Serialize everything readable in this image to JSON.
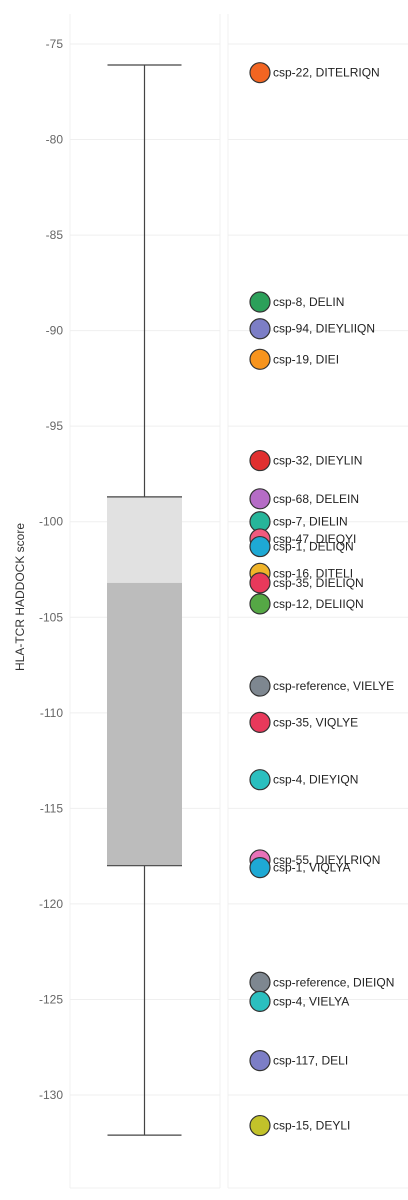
{
  "chart_data": {
    "type": "boxplot",
    "ylabel": "HLA-TCR HADDOCK score",
    "ylim": [
      -133,
      -71.6
    ],
    "yticks": [
      -75,
      -80,
      -85,
      -90,
      -95,
      -100,
      -105,
      -110,
      -115,
      -120,
      -125,
      -130
    ],
    "grid": true,
    "box": {
      "min": -132.1,
      "q1": -118.0,
      "median": -103.2,
      "q3": -98.7,
      "max": -76.1,
      "lower_fill": "#bcbcbc",
      "upper_fill": "#e1e1e1"
    },
    "points": [
      {
        "label": "csp-22, DITELRIQN",
        "value": -76.5,
        "color": "#f26522"
      },
      {
        "label": "csp-8, DELIN",
        "value": -88.5,
        "color": "#2ca05a"
      },
      {
        "label": "csp-94, DIEYLIIQN",
        "value": -89.9,
        "color": "#7c7ec6"
      },
      {
        "label": "csp-19, DIEI",
        "value": -91.5,
        "color": "#f7941d"
      },
      {
        "label": "csp-32, DIEYLIN",
        "value": -96.8,
        "color": "#e03030"
      },
      {
        "label": "csp-68, DELEIN",
        "value": -98.8,
        "color": "#b56cc6"
      },
      {
        "label": "csp-7, DIELIN",
        "value": -100.0,
        "color": "#26b59a"
      },
      {
        "label": "csp-47, DIEQYI",
        "value": -100.9,
        "color": "#f05a7e"
      },
      {
        "label": "csp-1, DELIQN",
        "value": -101.3,
        "color": "#1ea9d4"
      },
      {
        "label": "csp-16, DITELI",
        "value": -102.7,
        "color": "#f0b429"
      },
      {
        "label": "csp-35, DIELIQN",
        "value": -103.2,
        "color": "#e8395b"
      },
      {
        "label": "csp-12, DELIIQN",
        "value": -104.3,
        "color": "#55a845"
      },
      {
        "label": "csp-reference, VIELYE",
        "value": -108.6,
        "color": "#7e8790"
      },
      {
        "label": "csp-35, VIQLYE",
        "value": -110.5,
        "color": "#e8395b"
      },
      {
        "label": "csp-4, DIEYIQN",
        "value": -113.5,
        "color": "#2bbfbf"
      },
      {
        "label": "csp-55, DIEYLRIQN",
        "value": -117.7,
        "color": "#e872b8"
      },
      {
        "label": "csp-1, VIQLYA",
        "value": -118.1,
        "color": "#1ea9d4"
      },
      {
        "label": "csp-reference, DIEIQN",
        "value": -124.1,
        "color": "#7e8790"
      },
      {
        "label": "csp-4, VIELYA",
        "value": -125.1,
        "color": "#2bbfbf"
      },
      {
        "label": "csp-117, DELI",
        "value": -128.2,
        "color": "#7c7ec6"
      },
      {
        "label": "csp-15, DEYLI",
        "value": -131.6,
        "color": "#c2c22a"
      }
    ]
  }
}
